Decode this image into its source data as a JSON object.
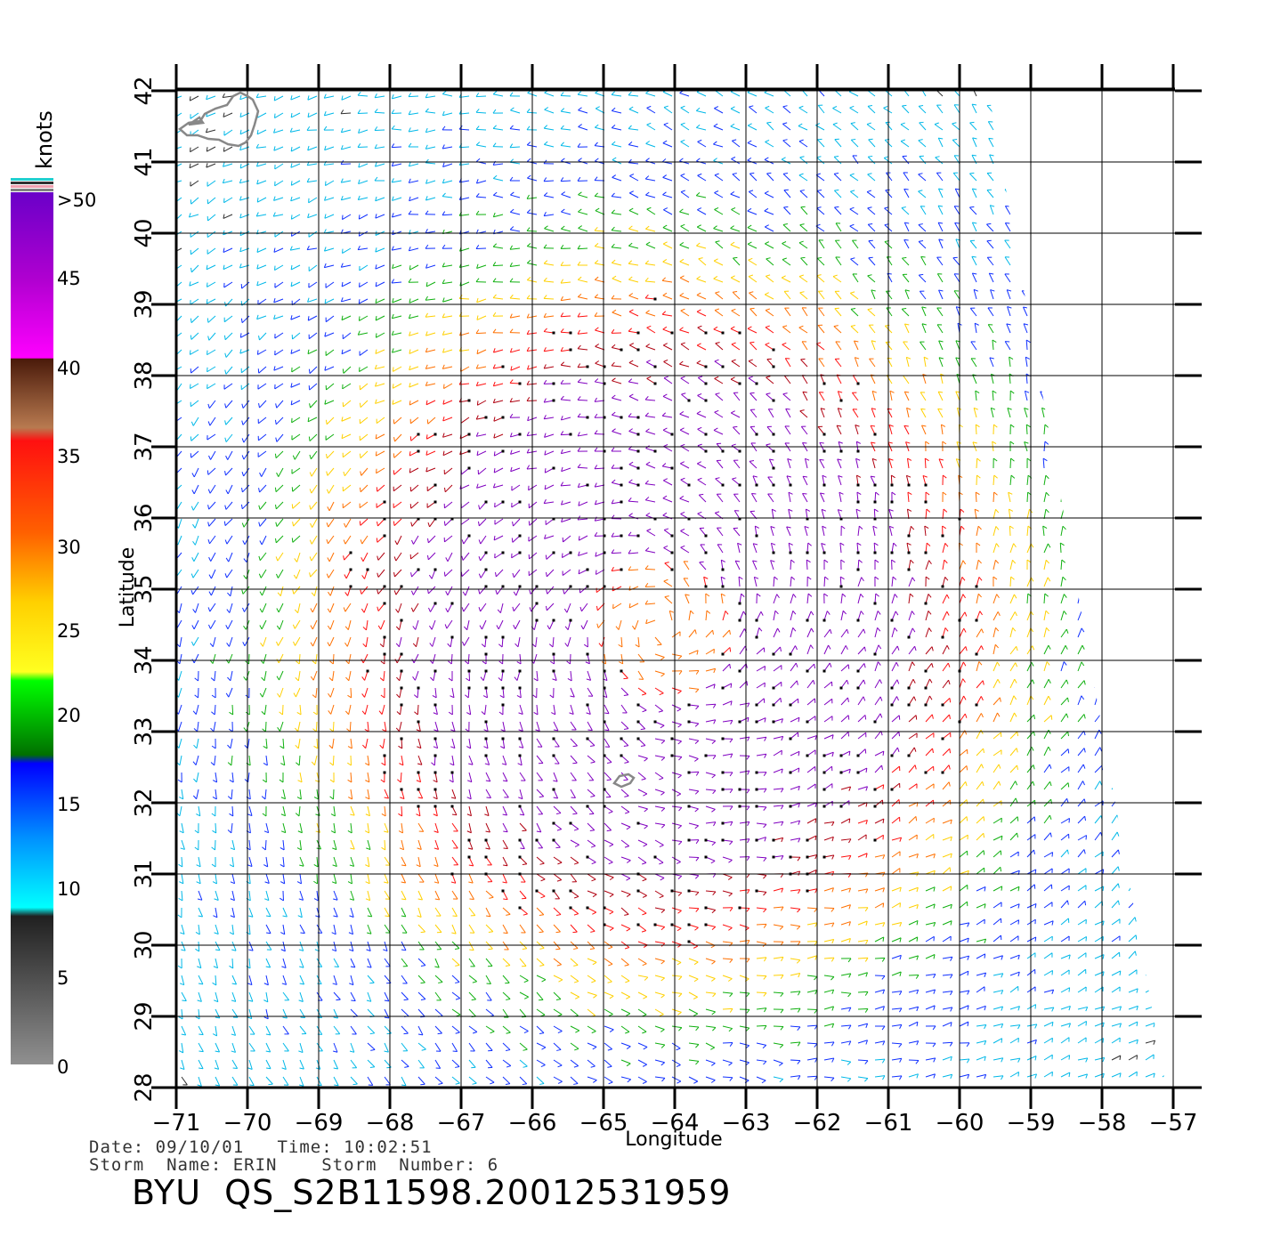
{
  "map": {
    "xlabel": "Longitude",
    "ylabel": "Latitude",
    "lon_ticks": [
      -71,
      -70,
      -69,
      -68,
      -67,
      -66,
      -65,
      -64,
      -63,
      -62,
      -61,
      -60,
      -59,
      -58,
      -57
    ],
    "lat_ticks": [
      28,
      29,
      30,
      31,
      32,
      33,
      34,
      35,
      36,
      37,
      38,
      39,
      40,
      41,
      42
    ],
    "lon_range": [
      -71,
      -57
    ],
    "lat_range": [
      28,
      42
    ],
    "grid": true,
    "storm_center_approx": {
      "lon": -64.2,
      "lat": 34.5
    },
    "features": [
      "coastline-cape-cod",
      "bermuda-island",
      "wind-barbs"
    ]
  },
  "colorbar": {
    "unit_label": "knots",
    "tick_labels": [
      ">50",
      "45",
      "40",
      "35",
      "30",
      "25",
      "20",
      "15",
      "10",
      "5",
      "0"
    ],
    "colors": [
      "#6a00c8",
      "#b000d0",
      "#ff00ff",
      "#4a1a0a",
      "#b87a50",
      "#ff1010",
      "#ff6000",
      "#ffd000",
      "#ffff20",
      "#00ff00",
      "#007000",
      "#0000ff",
      "#0090ff",
      "#00ffff",
      "#202020",
      "#909090"
    ]
  },
  "footer": {
    "date_line": "Date: 09/10/01   Time: 10:02:51",
    "storm_line": "Storm  Name: ERIN    Storm  Number: 6",
    "product_id": "BYU  QS_S2B11598.20012531959"
  }
}
